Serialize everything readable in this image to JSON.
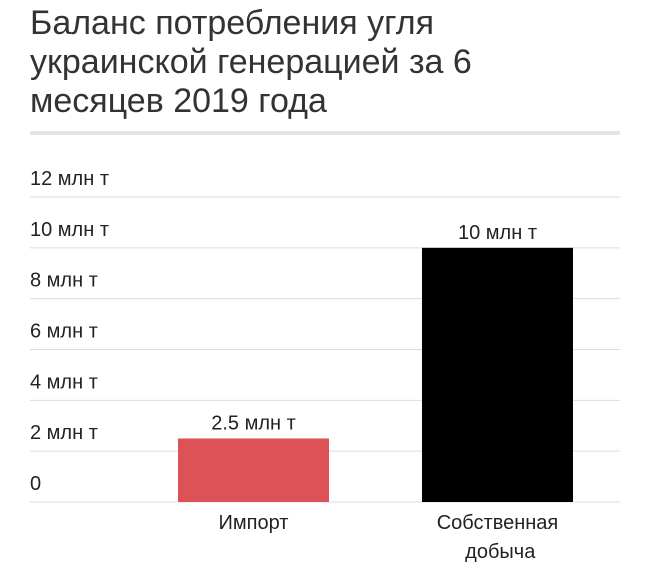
{
  "chart_data": {
    "type": "bar",
    "title": "Баланс потребления угля украинской генерацией за 6 месяцев 2019 года",
    "categories": [
      "Импорт",
      "Собственная добыча"
    ],
    "values": [
      2.5,
      10
    ],
    "value_labels": [
      "2.5 млн т",
      "10 млн т"
    ],
    "colors": [
      "#dc5257",
      "#000000"
    ],
    "ylim": [
      0,
      12
    ],
    "yticks": [
      0,
      {
        "value": 2,
        "label": "2 млн т"
      },
      {
        "value": 4,
        "label": "4 млн т"
      },
      {
        "value": 6,
        "label": "6 млн т"
      },
      {
        "value": 8,
        "label": "8 млн т"
      },
      {
        "value": 10,
        "label": "10 млн т"
      },
      {
        "value": 12,
        "label": "12 млн т"
      }
    ],
    "grid": true
  }
}
